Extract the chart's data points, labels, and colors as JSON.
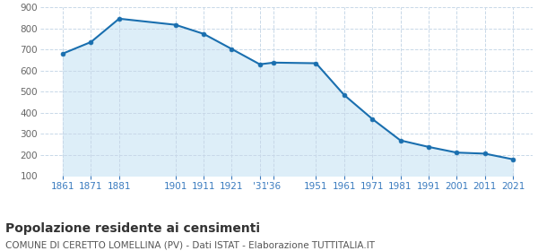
{
  "years": [
    1861,
    1871,
    1881,
    1901,
    1911,
    1921,
    1931,
    1936,
    1951,
    1961,
    1971,
    1981,
    1991,
    2001,
    2011,
    2021
  ],
  "population": [
    681,
    736,
    847,
    818,
    775,
    703,
    630,
    638,
    635,
    484,
    370,
    268,
    237,
    210,
    205,
    178
  ],
  "line_color": "#1a6faf",
  "fill_color": "#ddeef8",
  "marker_color": "#1a6faf",
  "bg_color": "#ffffff",
  "grid_color": "#c8d8e8",
  "ylim": [
    100,
    900
  ],
  "yticks": [
    100,
    200,
    300,
    400,
    500,
    600,
    700,
    800,
    900
  ],
  "xlim_left": 1853,
  "xlim_right": 2028,
  "title": "Popolazione residente ai censimenti",
  "subtitle": "COMUNE DI CERETTO LOMELLINA (PV) - Dati ISTAT - Elaborazione TUTTITALIA.IT",
  "title_fontsize": 10,
  "subtitle_fontsize": 7.5,
  "tick_label_color": "#3a7bbf",
  "ytick_label_color": "#666666",
  "tick_fontsize": 7.5
}
